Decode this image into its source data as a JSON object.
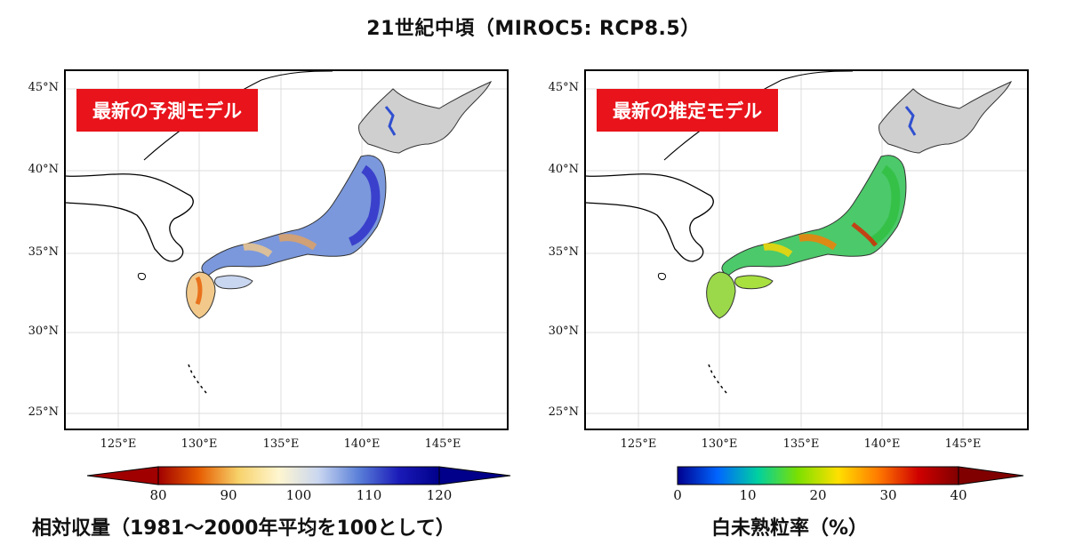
{
  "title": "21世紀中頃（MIROC5: RCP8.5）",
  "lat_labels": [
    "45°N",
    "40°N",
    "35°N",
    "30°N",
    "25°N"
  ],
  "lon_labels": [
    "125°E",
    "130°E",
    "135°E",
    "140°E",
    "145°E"
  ],
  "left_panel": {
    "badge": "最新の予測モデル",
    "colorbar": {
      "ticks": [
        "80",
        "90",
        "100",
        "110",
        "120"
      ],
      "colors": [
        "#a00000",
        "#e65c00",
        "#f7d26b",
        "#fff6d0",
        "#c9d6f0",
        "#5a7fd8",
        "#1a1ab8",
        "#00008a"
      ],
      "title": "相対収量（1981～2000年平均を100として）"
    }
  },
  "right_panel": {
    "badge": "最新の推定モデル",
    "colorbar": {
      "ticks": [
        "0",
        "10",
        "20",
        "30",
        "40"
      ],
      "colors": [
        "#00008f",
        "#0066ff",
        "#00d0a0",
        "#7be000",
        "#ffe000",
        "#ff7a00",
        "#d00000",
        "#800000"
      ],
      "title": "白未熟粒率（%）"
    }
  }
}
